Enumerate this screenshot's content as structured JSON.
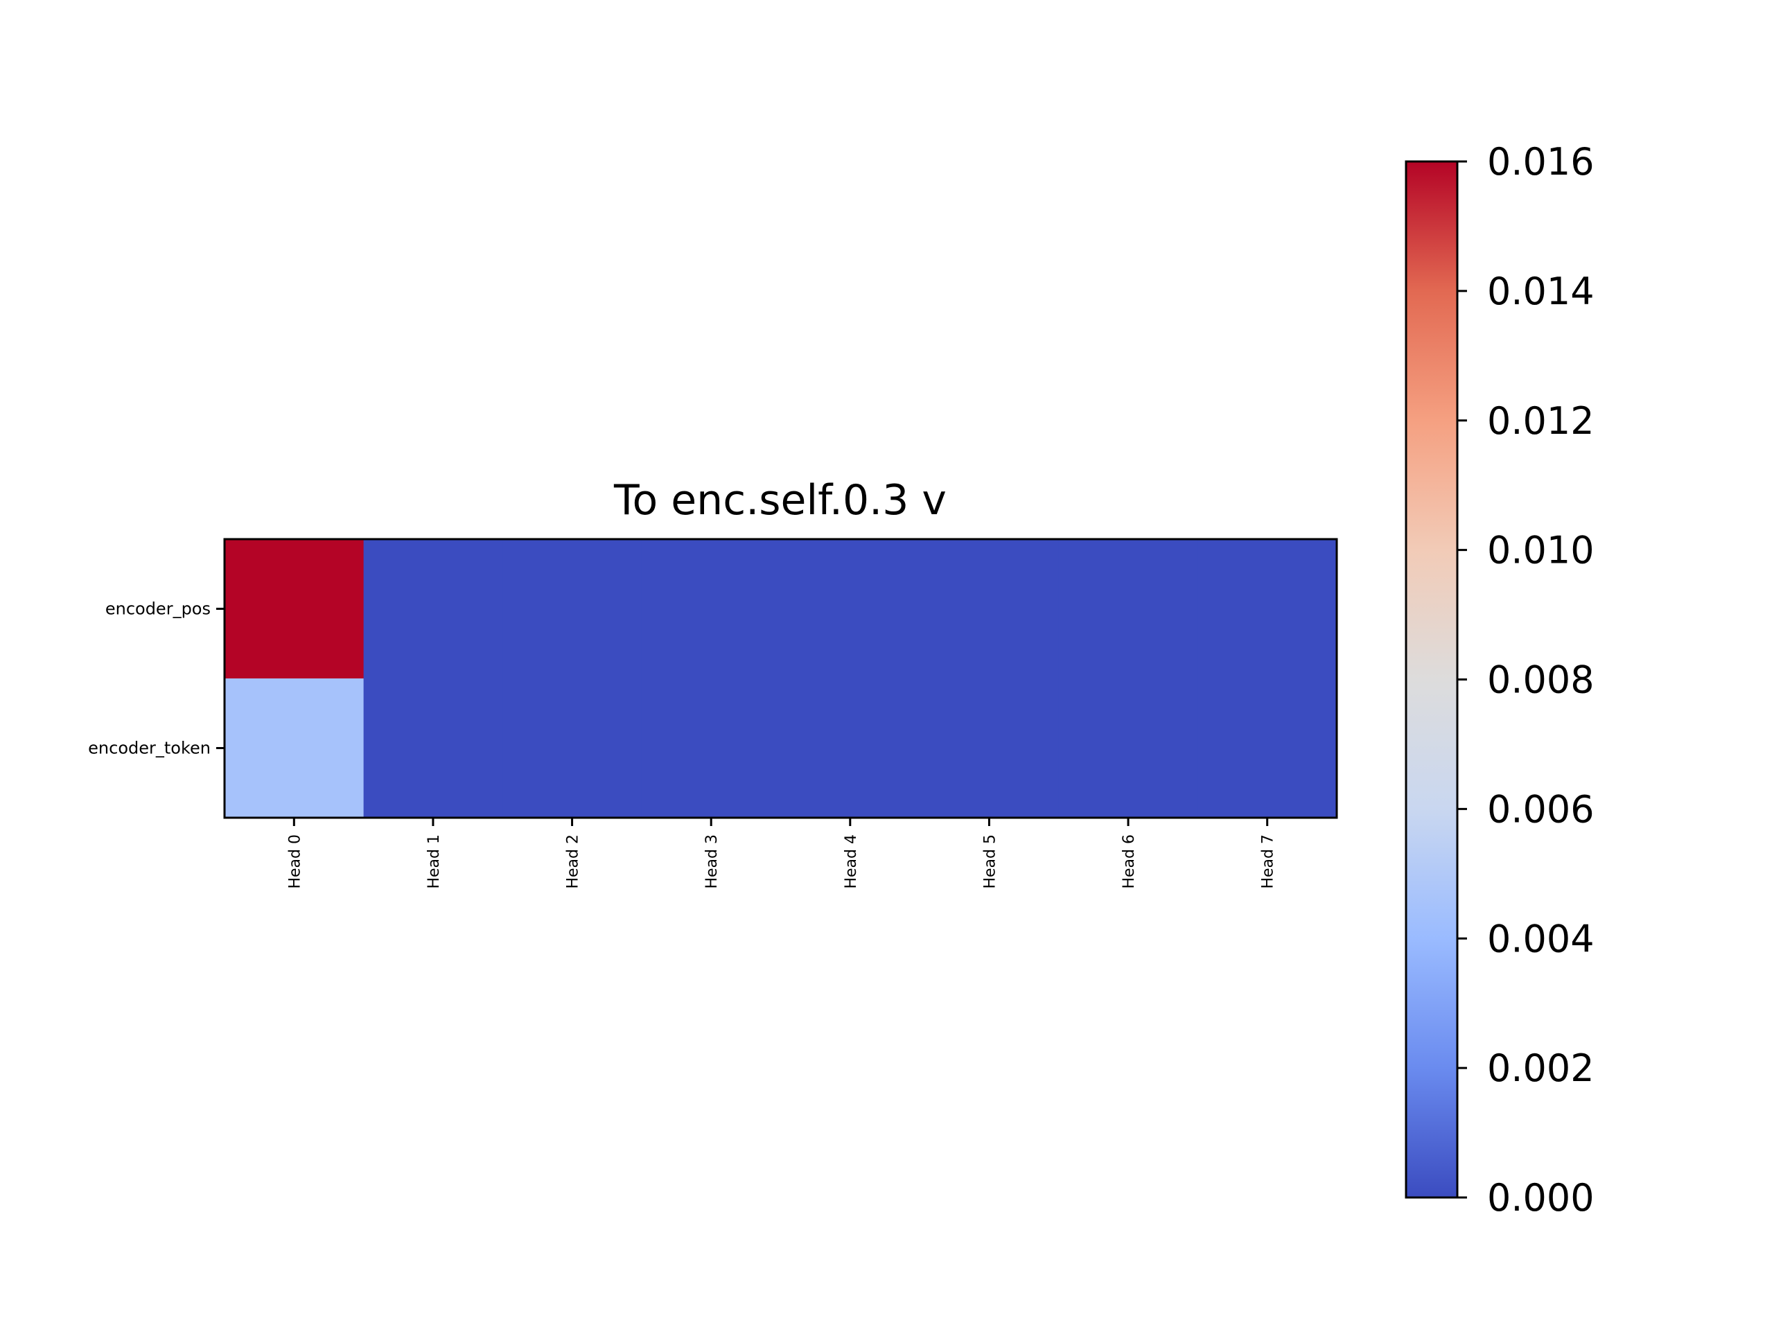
{
  "chart_data": {
    "type": "heatmap",
    "title": "To enc.self.0.3 v",
    "xlabel": "",
    "ylabel": "",
    "x_categories": [
      "Head 0",
      "Head 1",
      "Head 2",
      "Head 3",
      "Head 4",
      "Head 5",
      "Head 6",
      "Head 7"
    ],
    "y_categories": [
      "encoder_pos",
      "encoder_token"
    ],
    "values": [
      [
        0.016,
        0.0,
        0.0,
        0.0,
        0.0,
        0.0,
        0.0,
        0.0
      ],
      [
        0.0045,
        0.0,
        0.0,
        0.0,
        0.0,
        0.0,
        0.0,
        0.0
      ]
    ],
    "colormap": "coolwarm",
    "colormap_stops": [
      "#3b4cc0",
      "#6a8bef",
      "#9abbff",
      "#c9d7f0",
      "#dddcdc",
      "#f2cbb7",
      "#f5a081",
      "#e26952",
      "#b40426"
    ],
    "colorbar": {
      "range": [
        0.0,
        0.016
      ],
      "ticks": [
        "0.000",
        "0.002",
        "0.004",
        "0.006",
        "0.008",
        "0.010",
        "0.012",
        "0.014",
        "0.016"
      ]
    },
    "grid": false
  }
}
